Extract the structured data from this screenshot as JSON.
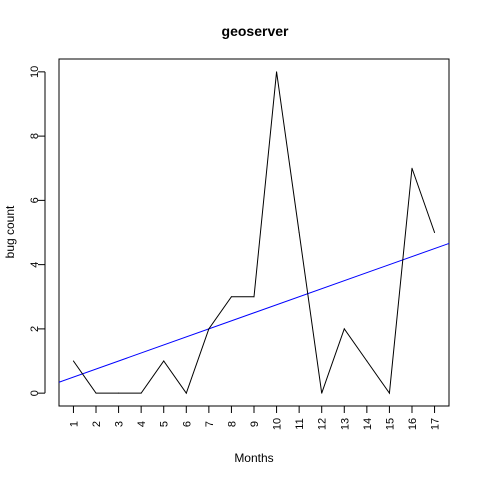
{
  "chart_data": {
    "type": "line",
    "title": "geoserver",
    "xlabel": "Months",
    "ylabel": "bug count",
    "x": [
      1,
      2,
      3,
      4,
      5,
      6,
      7,
      8,
      9,
      10,
      11,
      12,
      13,
      14,
      15,
      16,
      17
    ],
    "x_tick_labels": [
      "1",
      "2",
      "3",
      "4",
      "5",
      "6",
      "7",
      "8",
      "9",
      "10",
      "11",
      "12",
      "13",
      "14",
      "15",
      "16",
      "17"
    ],
    "y_ticks": [
      0,
      2,
      4,
      6,
      8,
      10
    ],
    "y_tick_labels": [
      "0",
      "2",
      "4",
      "6",
      "8",
      "10"
    ],
    "xlim": [
      0.36,
      17.64
    ],
    "ylim": [
      -0.4,
      10.4
    ],
    "grid": false,
    "series": [
      {
        "values": [
          1,
          0,
          0,
          0,
          1,
          0,
          2,
          3,
          3,
          10,
          5,
          0,
          2,
          1,
          0,
          7,
          5
        ],
        "color": "#000000"
      }
    ],
    "trendline": {
      "intercept": 0.25,
      "slope": 0.25,
      "color": "#0000ff"
    }
  }
}
